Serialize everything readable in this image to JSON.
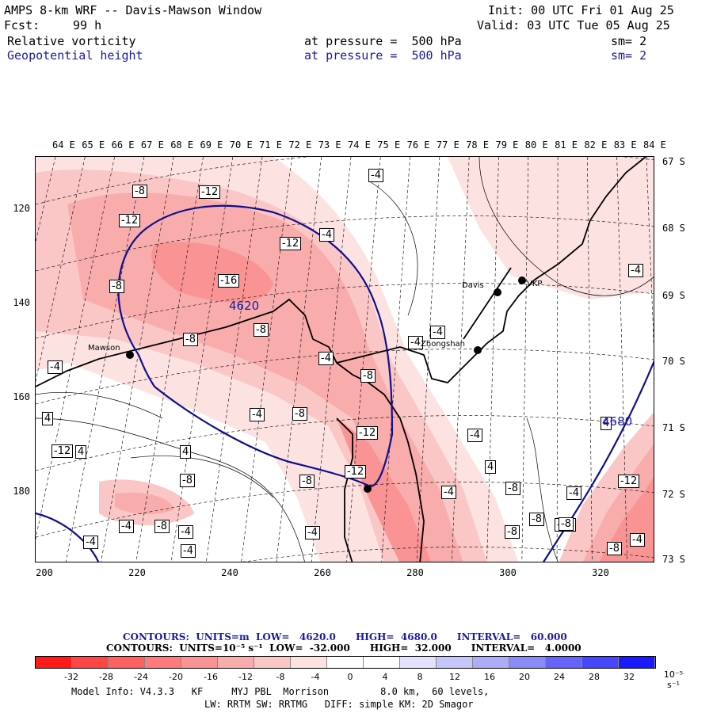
{
  "header": {
    "title": "AMPS 8-km WRF -- Davis-Mawson Window",
    "init": "Init: 00 UTC Fri 01 Aug 25",
    "fcst_label": "Fcst:",
    "fcst_value": "99 h",
    "valid": "Valid: 03 UTC Tue 05 Aug 25",
    "field1_name": "Relative vorticity",
    "field1_level": "at pressure =  500 hPa",
    "field1_sm": "sm= 2",
    "field2_name": "Geopotential height",
    "field2_level": "at pressure =  500 hPa",
    "field2_sm": "sm= 2"
  },
  "longitudes": [
    "64 E",
    "65 E",
    "66 E",
    "67 E",
    "68 E",
    "69 E",
    "70 E",
    "71 E",
    "72 E",
    "73 E",
    "74 E",
    "75 E",
    "76 E",
    "77 E",
    "78 E",
    "79 E",
    "80 E",
    "81 E",
    "82 E",
    "83 E",
    "84 E"
  ],
  "latitudes": [
    "67 S",
    "68 S",
    "69 S",
    "70 S",
    "71 S",
    "72 S",
    "73 S"
  ],
  "y_ticks": [
    "120",
    "140",
    "160",
    "180"
  ],
  "x_ticks": [
    "200",
    "220",
    "240",
    "260",
    "280",
    "300",
    "320"
  ],
  "stations": [
    {
      "name": "Mawson"
    },
    {
      "name": "Davis"
    },
    {
      "name": "Zhongshan"
    },
    {
      "name": "VKP"
    }
  ],
  "contour_labels": [
    "-8",
    "-12",
    "-12",
    "-12",
    "-8",
    "-16",
    "-8",
    "-8",
    "-4",
    "-4",
    "-8",
    "-4",
    "-4",
    "-8",
    "-8",
    "-12",
    "-12",
    "-8",
    "-4",
    "-4",
    "-4",
    "-8",
    "-4",
    "-12",
    "-8",
    "-4",
    "-8",
    "-4",
    "-4",
    "-4",
    "-4",
    "-4",
    "-12",
    "-8",
    "-8",
    "-8",
    "-4",
    "-12",
    "-4",
    "4",
    "4",
    "4",
    "4",
    "4",
    "-4"
  ],
  "geopotential_labels": [
    "4620",
    "4680"
  ],
  "contour_info": {
    "line1": "CONTOURS:  UNITS=m  LOW=   4620.0      HIGH=  4680.0      INTERVAL=   60.000",
    "line2": "CONTOURS:  UNITS=10⁻⁵ s⁻¹  LOW=  -32.000      HIGH=  32.000      INTERVAL=   4.0000"
  },
  "colorbar": {
    "ticks": [
      "-32",
      "-28",
      "-24",
      "-20",
      "-16",
      "-12",
      "-8",
      "-4",
      "0",
      "4",
      "8",
      "12",
      "16",
      "20",
      "24",
      "28",
      "32"
    ],
    "units": "10⁻⁵ s⁻¹",
    "colors": [
      "#ff1a1a",
      "#ff4646",
      "#ff6060",
      "#ff7a7a",
      "#fa9494",
      "#f8acac",
      "#fbc6c6",
      "#fde2e2",
      "#ffffff",
      "#ffffff",
      "#e2e2fd",
      "#c6c6fb",
      "#acacf8",
      "#8a8af8",
      "#6464fa",
      "#4646ff",
      "#1a1aff"
    ]
  },
  "model_info": {
    "line1": "Model Info: V4.3.3   KF     MYJ PBL  Morrison         8.0 km,  60 levels,",
    "line2": "LW: RRTM SW: RRTMG   DIFF: simple KM: 2D Smagor"
  }
}
